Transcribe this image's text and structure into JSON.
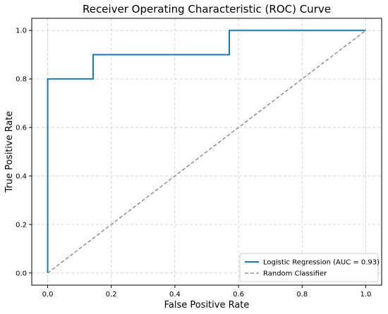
{
  "chart_data": {
    "type": "line",
    "title": "Receiver Operating Characteristic (ROC) Curve",
    "xlabel": "False Positive Rate",
    "ylabel": "True Positive Rate",
    "xlim": [
      -0.05,
      1.05
    ],
    "ylim": [
      -0.05,
      1.05
    ],
    "xticks": [
      "0.0",
      "0.2",
      "0.4",
      "0.6",
      "0.8",
      "1.0"
    ],
    "yticks": [
      "0.0",
      "0.2",
      "0.4",
      "0.6",
      "0.8",
      "1.0"
    ],
    "grid": true,
    "legend_position": "lower-right",
    "series": [
      {
        "name": "Logistic Regression (AUC = 0.93)",
        "style": "solid",
        "color": "#1f77b4",
        "x": [
          0.0,
          0.0,
          0.143,
          0.143,
          0.571,
          0.571,
          1.0
        ],
        "y": [
          0.0,
          0.8,
          0.8,
          0.9,
          0.9,
          1.0,
          1.0
        ]
      },
      {
        "name": "Random Classifier",
        "style": "dashed",
        "color": "#808080",
        "x": [
          0.0,
          1.0
        ],
        "y": [
          0.0,
          1.0
        ]
      }
    ]
  }
}
